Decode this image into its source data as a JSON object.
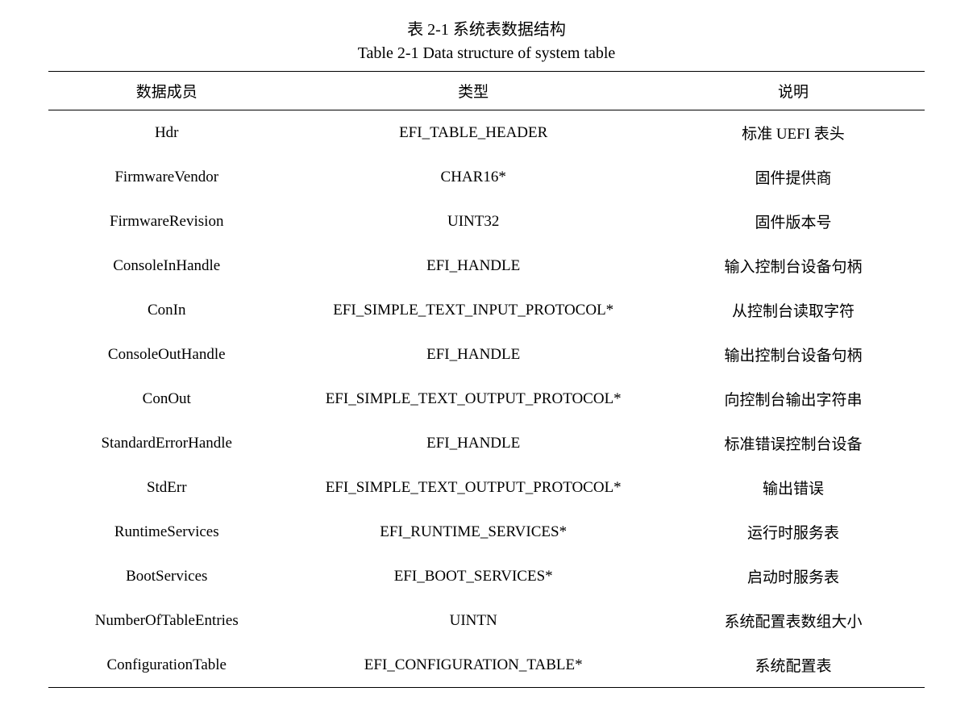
{
  "captions": {
    "cn": "表 2-1  系统表数据结构",
    "en": "Table 2-1 Data structure of system table"
  },
  "table": {
    "type": "table",
    "background_color": "#ffffff",
    "border_color": "#000000",
    "text_color": "#000000",
    "header_fontsize": 19,
    "body_fontsize": 19,
    "column_widths_percent": [
      27,
      43,
      30
    ],
    "column_alignment": [
      "center",
      "center",
      "center"
    ],
    "columns": [
      "数据成员",
      "类型",
      "说明"
    ],
    "rows": [
      [
        "Hdr",
        "EFI_TABLE_HEADER",
        "标准 UEFI 表头"
      ],
      [
        "FirmwareVendor",
        "CHAR16*",
        "固件提供商"
      ],
      [
        "FirmwareRevision",
        "UINT32",
        "固件版本号"
      ],
      [
        "ConsoleInHandle",
        "EFI_HANDLE",
        "输入控制台设备句柄"
      ],
      [
        "ConIn",
        "EFI_SIMPLE_TEXT_INPUT_PROTOCOL*",
        "从控制台读取字符"
      ],
      [
        "ConsoleOutHandle",
        "EFI_HANDLE",
        "输出控制台设备句柄"
      ],
      [
        "ConOut",
        "EFI_SIMPLE_TEXT_OUTPUT_PROTOCOL*",
        "向控制台输出字符串"
      ],
      [
        "StandardErrorHandle",
        "EFI_HANDLE",
        "标准错误控制台设备"
      ],
      [
        "StdErr",
        "EFI_SIMPLE_TEXT_OUTPUT_PROTOCOL*",
        "输出错误"
      ],
      [
        "RuntimeServices",
        "EFI_RUNTIME_SERVICES*",
        "运行时服务表"
      ],
      [
        "BootServices",
        "EFI_BOOT_SERVICES*",
        "启动时服务表"
      ],
      [
        "NumberOfTableEntries",
        "UINTN",
        "系统配置表数组大小"
      ],
      [
        "ConfigurationTable",
        "EFI_CONFIGURATION_TABLE*",
        "系统配置表"
      ]
    ]
  }
}
